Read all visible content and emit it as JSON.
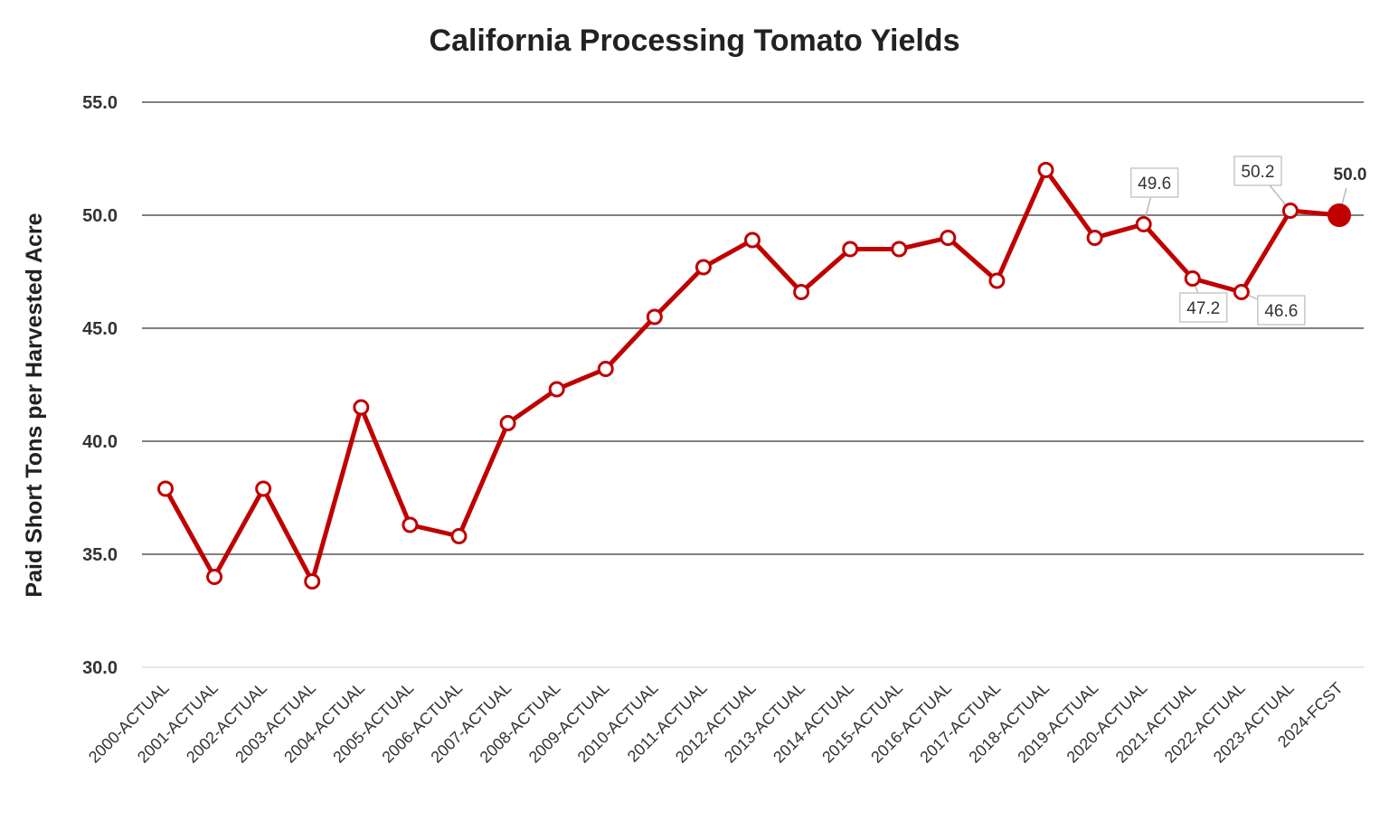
{
  "chart_data": {
    "type": "line",
    "title": "California Processing Tomato Yields",
    "xlabel": "",
    "ylabel": "Paid Short Tons per Harvested Acre",
    "ylim": [
      30,
      55
    ],
    "y_ticks": [
      "30.0",
      "35.0",
      "40.0",
      "45.0",
      "50.0",
      "55.0"
    ],
    "grid": true,
    "categories": [
      "2000-ACTUAL",
      "2001-ACTUAL",
      "2002-ACTUAL",
      "2003-ACTUAL",
      "2004-ACTUAL",
      "2005-ACTUAL",
      "2006-ACTUAL",
      "2007-ACTUAL",
      "2008-ACTUAL",
      "2009-ACTUAL",
      "2010-ACTUAL",
      "2011-ACTUAL",
      "2012-ACTUAL",
      "2013-ACTUAL",
      "2014-ACTUAL",
      "2015-ACTUAL",
      "2016-ACTUAL",
      "2017-ACTUAL",
      "2018-ACTUAL",
      "2019-ACTUAL",
      "2020-ACTUAL",
      "2021-ACTUAL",
      "2022-ACTUAL",
      "2023-ACTUAL",
      "2024-FCST"
    ],
    "series": [
      {
        "values": [
          37.9,
          34.0,
          37.9,
          33.8,
          41.5,
          36.3,
          35.8,
          40.8,
          42.3,
          43.2,
          45.5,
          47.7,
          48.9,
          46.6,
          48.5,
          48.5,
          49.0,
          47.1,
          52.0,
          49.0,
          49.6,
          47.2,
          46.6,
          50.2,
          50.0
        ]
      }
    ],
    "data_labels": [
      {
        "index": 20,
        "text": "49.6",
        "position": "above",
        "bold": false
      },
      {
        "index": 21,
        "text": "47.2",
        "position": "below",
        "bold": false
      },
      {
        "index": 22,
        "text": "46.6",
        "position": "below-right",
        "bold": false
      },
      {
        "index": 23,
        "text": "50.2",
        "position": "above-left",
        "bold": false
      },
      {
        "index": 24,
        "text": "50.0",
        "position": "above",
        "bold": true
      }
    ],
    "colors": {
      "line": "#c00000",
      "grid": "#808080",
      "text": "#222222"
    }
  }
}
